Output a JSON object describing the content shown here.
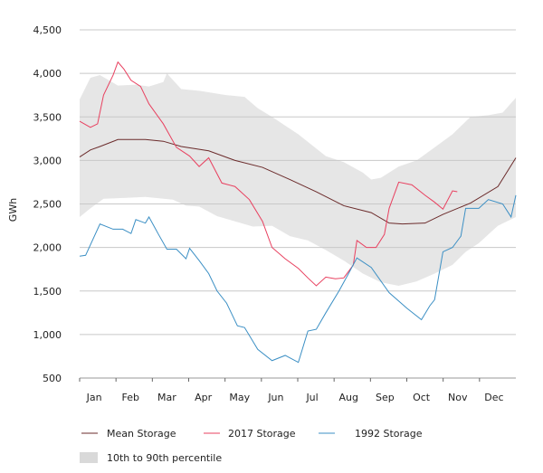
{
  "chart_data": {
    "type": "line",
    "title": "",
    "xlabel": "",
    "ylabel": "GWh",
    "ylim": [
      500,
      4500
    ],
    "yticks": [
      500,
      1000,
      1500,
      2000,
      2500,
      3000,
      3500,
      4000,
      4500
    ],
    "ytick_labels": [
      "500",
      "1,000",
      "1,500",
      "2,000",
      "2,500",
      "3,000",
      "3,500",
      "4,000",
      "4,500"
    ],
    "x_unit": "day of year",
    "xlim": [
      0,
      365
    ],
    "month_labels": [
      "Jan",
      "Feb",
      "Mar",
      "Apr",
      "May",
      "Jun",
      "Jul",
      "Aug",
      "Sep",
      "Oct",
      "Nov",
      "Dec"
    ],
    "grid": "horizontal",
    "legend_placement": "bottom",
    "band": {
      "name": "10th to 90th percentile",
      "color": "#e6e6e6",
      "upper": [
        [
          0,
          3700
        ],
        [
          9,
          3950
        ],
        [
          17,
          3980
        ],
        [
          32,
          3860
        ],
        [
          47,
          3870
        ],
        [
          58,
          3850
        ],
        [
          70,
          3900
        ],
        [
          73,
          4000
        ],
        [
          85,
          3820
        ],
        [
          100,
          3800
        ],
        [
          123,
          3750
        ],
        [
          138,
          3730
        ],
        [
          149,
          3600
        ],
        [
          161,
          3500
        ],
        [
          183,
          3300
        ],
        [
          206,
          3050
        ],
        [
          221,
          2980
        ],
        [
          237,
          2860
        ],
        [
          244,
          2780
        ],
        [
          252,
          2800
        ],
        [
          267,
          2930
        ],
        [
          282,
          3000
        ],
        [
          297,
          3150
        ],
        [
          312,
          3300
        ],
        [
          327,
          3500
        ],
        [
          342,
          3520
        ],
        [
          354,
          3550
        ],
        [
          365,
          3720
        ]
      ],
      "lower": [
        [
          0,
          2350
        ],
        [
          9,
          2450
        ],
        [
          20,
          2560
        ],
        [
          39,
          2570
        ],
        [
          55,
          2580
        ],
        [
          78,
          2550
        ],
        [
          89,
          2480
        ],
        [
          100,
          2470
        ],
        [
          115,
          2360
        ],
        [
          130,
          2300
        ],
        [
          145,
          2240
        ],
        [
          161,
          2250
        ],
        [
          176,
          2130
        ],
        [
          191,
          2080
        ],
        [
          206,
          1970
        ],
        [
          221,
          1850
        ],
        [
          237,
          1700
        ],
        [
          252,
          1600
        ],
        [
          267,
          1560
        ],
        [
          282,
          1610
        ],
        [
          297,
          1700
        ],
        [
          312,
          1800
        ],
        [
          323,
          1950
        ],
        [
          334,
          2050
        ],
        [
          350,
          2250
        ],
        [
          365,
          2350
        ]
      ]
    },
    "series": [
      {
        "name": "Mean Storage",
        "color": "#6b2b2b",
        "points": [
          [
            0,
            3040
          ],
          [
            9,
            3120
          ],
          [
            17,
            3160
          ],
          [
            32,
            3240
          ],
          [
            55,
            3240
          ],
          [
            70,
            3220
          ],
          [
            85,
            3160
          ],
          [
            108,
            3110
          ],
          [
            130,
            3000
          ],
          [
            153,
            2920
          ],
          [
            176,
            2780
          ],
          [
            198,
            2640
          ],
          [
            221,
            2480
          ],
          [
            244,
            2400
          ],
          [
            259,
            2280
          ],
          [
            270,
            2270
          ],
          [
            289,
            2280
          ],
          [
            304,
            2380
          ],
          [
            327,
            2510
          ],
          [
            350,
            2700
          ],
          [
            365,
            3030
          ]
        ]
      },
      {
        "name": "2017 Storage",
        "color": "#e8405f",
        "points": [
          [
            0,
            3450
          ],
          [
            9,
            3380
          ],
          [
            15,
            3420
          ],
          [
            20,
            3750
          ],
          [
            28,
            3980
          ],
          [
            32,
            4130
          ],
          [
            37,
            4050
          ],
          [
            43,
            3920
          ],
          [
            51,
            3850
          ],
          [
            58,
            3650
          ],
          [
            70,
            3420
          ],
          [
            81,
            3150
          ],
          [
            92,
            3050
          ],
          [
            100,
            2930
          ],
          [
            108,
            3030
          ],
          [
            119,
            2740
          ],
          [
            130,
            2700
          ],
          [
            142,
            2550
          ],
          [
            153,
            2300
          ],
          [
            161,
            2000
          ],
          [
            172,
            1870
          ],
          [
            183,
            1760
          ],
          [
            191,
            1650
          ],
          [
            198,
            1560
          ],
          [
            206,
            1660
          ],
          [
            214,
            1640
          ],
          [
            221,
            1650
          ],
          [
            229,
            1800
          ],
          [
            232,
            2080
          ],
          [
            240,
            2000
          ],
          [
            248,
            2000
          ],
          [
            255,
            2150
          ],
          [
            259,
            2450
          ],
          [
            267,
            2750
          ],
          [
            278,
            2720
          ],
          [
            289,
            2600
          ],
          [
            297,
            2520
          ],
          [
            304,
            2440
          ],
          [
            312,
            2650
          ],
          [
            316,
            2640
          ]
        ]
      },
      {
        "name": "1992 Storage",
        "color": "#3b8fc4",
        "points": [
          [
            0,
            1900
          ],
          [
            5,
            1910
          ],
          [
            17,
            2270
          ],
          [
            28,
            2210
          ],
          [
            36,
            2210
          ],
          [
            43,
            2160
          ],
          [
            47,
            2320
          ],
          [
            55,
            2280
          ],
          [
            58,
            2350
          ],
          [
            66,
            2150
          ],
          [
            73,
            1980
          ],
          [
            81,
            1980
          ],
          [
            89,
            1870
          ],
          [
            92,
            1990
          ],
          [
            100,
            1850
          ],
          [
            108,
            1700
          ],
          [
            115,
            1500
          ],
          [
            123,
            1360
          ],
          [
            132,
            1100
          ],
          [
            138,
            1080
          ],
          [
            149,
            830
          ],
          [
            161,
            700
          ],
          [
            172,
            760
          ],
          [
            183,
            680
          ],
          [
            191,
            1040
          ],
          [
            198,
            1060
          ],
          [
            206,
            1250
          ],
          [
            217,
            1500
          ],
          [
            225,
            1700
          ],
          [
            232,
            1880
          ],
          [
            244,
            1770
          ],
          [
            259,
            1480
          ],
          [
            274,
            1300
          ],
          [
            286,
            1170
          ],
          [
            293,
            1330
          ],
          [
            297,
            1400
          ],
          [
            304,
            1950
          ],
          [
            312,
            2000
          ],
          [
            319,
            2130
          ],
          [
            323,
            2450
          ],
          [
            334,
            2450
          ],
          [
            342,
            2550
          ],
          [
            354,
            2500
          ],
          [
            361,
            2350
          ],
          [
            365,
            2600
          ]
        ]
      }
    ]
  }
}
